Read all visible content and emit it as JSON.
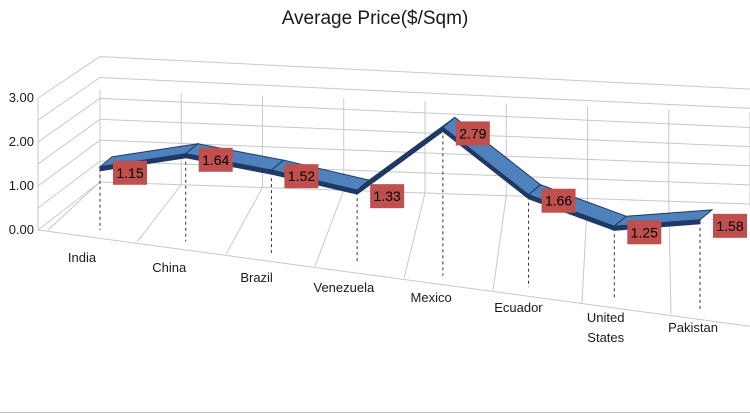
{
  "chart_data": {
    "type": "line",
    "title": "Average Price($/Sqm)",
    "categories": [
      "India",
      "China",
      "Brazil",
      "Venezuela",
      "Mexico",
      "Ecuador",
      "United States",
      "Pakistan"
    ],
    "series": [
      {
        "values": [
          1.15,
          1.64,
          1.52,
          1.33,
          2.79,
          1.66,
          1.25,
          1.58
        ]
      }
    ],
    "y_ticks": [
      "0.00",
      "1.00",
      "2.00",
      "3.00"
    ],
    "ylim": [
      0,
      3
    ],
    "grid": true,
    "three_d": true,
    "colors": {
      "ribbon_face": "#4f81bd",
      "ribbon_edge": "#1f3864",
      "label_box": "#c0504d",
      "grid": "#c8c8c8"
    }
  }
}
